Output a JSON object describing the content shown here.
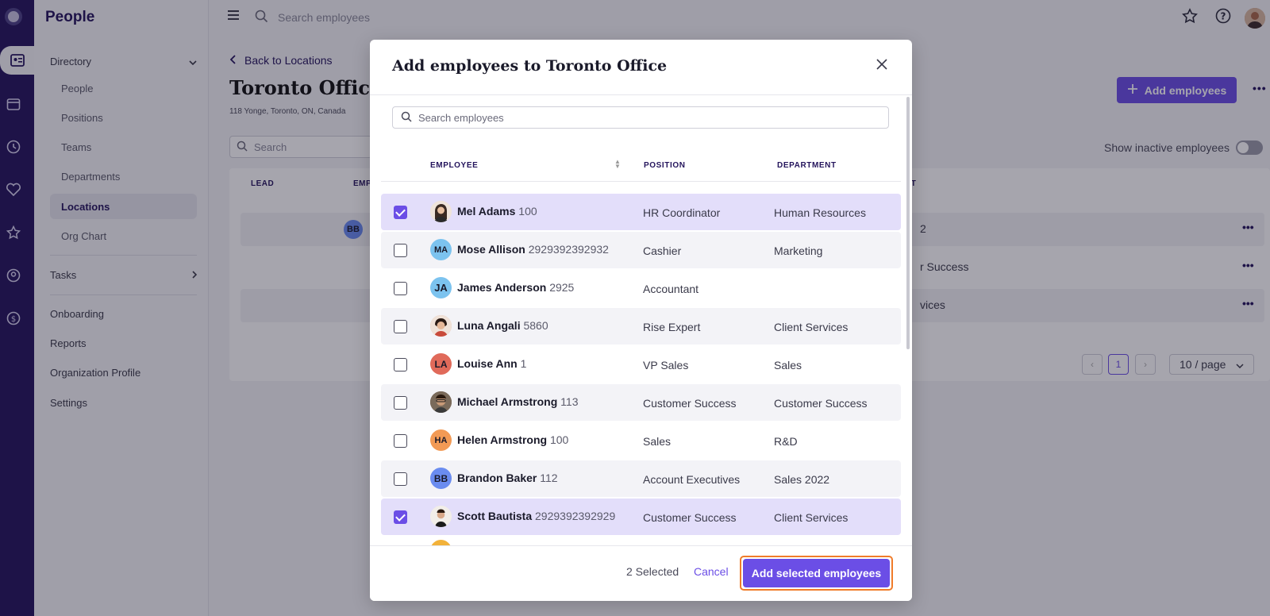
{
  "app": {
    "title": "People"
  },
  "topbar": {
    "search_placeholder": "Search employees"
  },
  "sidebar": {
    "directory_label": "Directory",
    "directory_items": [
      {
        "label": "People"
      },
      {
        "label": "Positions"
      },
      {
        "label": "Teams"
      },
      {
        "label": "Departments"
      },
      {
        "label": "Locations"
      },
      {
        "label": "Org Chart"
      }
    ],
    "tasks_label": "Tasks",
    "bottom_items": [
      {
        "label": "Onboarding"
      },
      {
        "label": "Reports"
      },
      {
        "label": "Organization Profile"
      },
      {
        "label": "Settings"
      }
    ]
  },
  "page": {
    "back_label": "Back to Locations",
    "title": "Toronto Office",
    "address": "118 Yonge, Toronto, ON, Canada",
    "add_button": "Add employees",
    "search_placeholder": "Search",
    "inactive_label": "Show inactive employees",
    "table_headers": {
      "lead": "LEAD",
      "emp": "EMP",
      "dep": "NT"
    },
    "rows": [
      {
        "text": "2",
        "initials": "BB"
      },
      {
        "text": "r Success"
      },
      {
        "text": "vices"
      }
    ],
    "pager": {
      "current": "1",
      "per_page": "10 / page"
    }
  },
  "modal": {
    "title": "Add employees to Toronto Office",
    "search_placeholder": "Search employees",
    "headers": {
      "employee": "EMPLOYEE",
      "position": "POSITION",
      "department": "DEPARTMENT"
    },
    "employees": [
      {
        "name": "Mel Adams",
        "id": "100",
        "position": "HR Coordinator",
        "department": "Human Resources",
        "initials": "",
        "avatar_color": "#e9d7c8",
        "selected": true
      },
      {
        "name": "Mose Allison",
        "id": "2929392392932",
        "position": "Cashier",
        "department": "Marketing",
        "initials": "MA",
        "avatar_color": "#7cc3ef",
        "selected": false
      },
      {
        "name": "James Anderson",
        "id": "2925",
        "position": "Accountant",
        "department": "",
        "initials": "JA",
        "avatar_color": "#7cc3ef",
        "selected": false
      },
      {
        "name": "Luna Angali",
        "id": "5860",
        "position": "Rise Expert",
        "department": "Client Services",
        "initials": "",
        "avatar_color": "#d9a98f",
        "selected": false
      },
      {
        "name": "Louise Ann",
        "id": "1",
        "position": "VP Sales",
        "department": "Sales",
        "initials": "LA",
        "avatar_color": "#e06a5a",
        "selected": false
      },
      {
        "name": "Michael Armstrong",
        "id": "113",
        "position": "Customer Success",
        "department": "Customer Success",
        "initials": "",
        "avatar_color": "#6a5a4a",
        "selected": false
      },
      {
        "name": "Helen Armstrong",
        "id": "100",
        "position": "Sales",
        "department": "R&D",
        "initials": "HA",
        "avatar_color": "#f29a55",
        "selected": false
      },
      {
        "name": "Brandon Baker",
        "id": "112",
        "position": "Account Executives",
        "department": "Sales 2022",
        "initials": "BB",
        "avatar_color": "#6a8cf0",
        "selected": false
      },
      {
        "name": "Scott Bautista",
        "id": "2929392392929",
        "position": "Customer Success",
        "department": "Client Services",
        "initials": "",
        "avatar_color": "#e9e3dc",
        "selected": true
      }
    ],
    "selected_count": "2 Selected",
    "cancel_label": "Cancel",
    "confirm_label": "Add selected employees"
  }
}
